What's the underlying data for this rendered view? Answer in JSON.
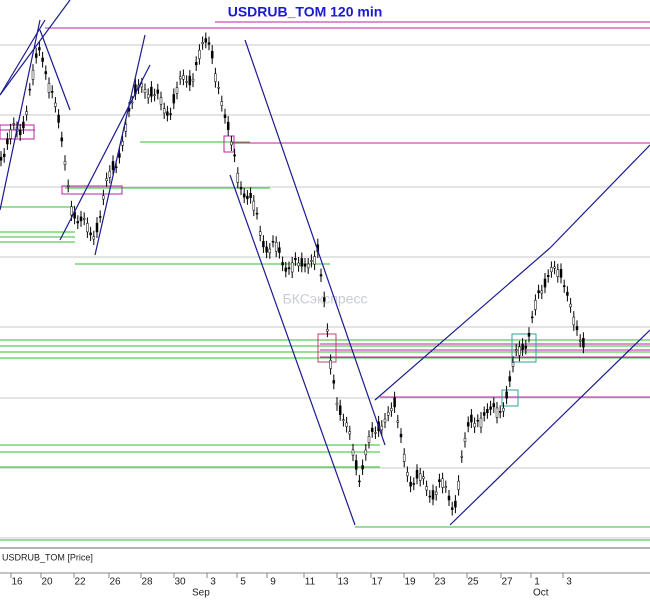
{
  "title": "USDRUB_TOM 120 min",
  "price_label": "USDRUB_TOM [Price]",
  "watermark": "БКСэкспресс",
  "x_axis": {
    "day_labels": [
      "16",
      "20",
      "22",
      "26",
      "28",
      "30",
      "3",
      "5",
      "9",
      "11",
      "13",
      "17",
      "19",
      "23",
      "25",
      "27",
      "1",
      "3"
    ],
    "month_labels": [
      "Sep",
      "Oct"
    ]
  }
}
